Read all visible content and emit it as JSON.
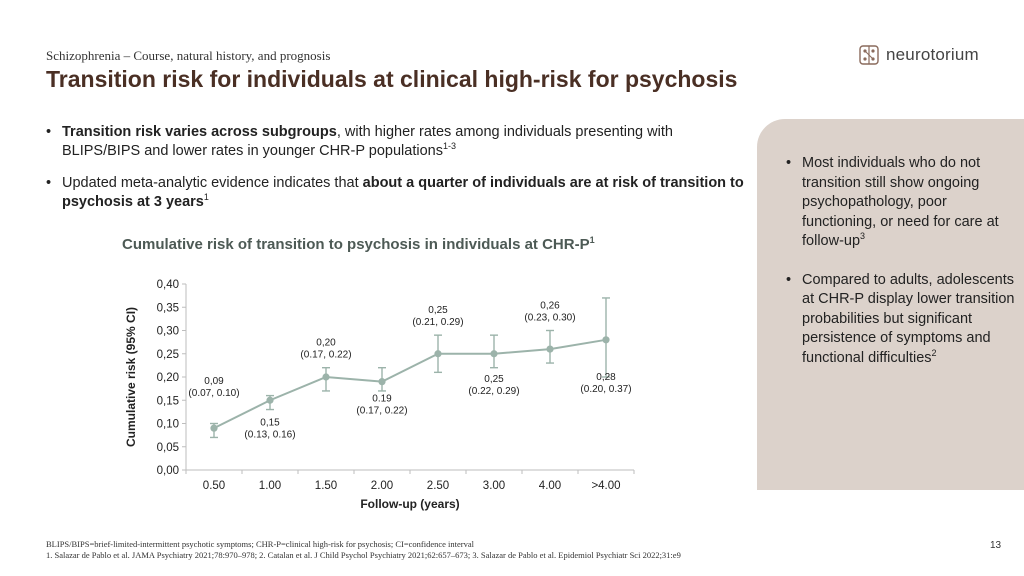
{
  "header": {
    "section": "Schizophrenia – Course, natural history, and prognosis",
    "title": "Transition risk for individuals at clinical high-risk for psychosis",
    "logo_text": "neurotorium"
  },
  "bullets": [
    {
      "bold": "Transition risk varies across subgroups",
      "text": ", with higher rates among individuals presenting with BLIPS/BIPS and lower rates in younger CHR-P populations",
      "sup": "1-3"
    },
    {
      "pre": "Updated meta-analytic evidence indicates that ",
      "bold": "about a quarter of individuals are at risk of transition to psychosis at 3 years",
      "sup": "1"
    }
  ],
  "side_panel": [
    {
      "text": "Most individuals who do not transition still show ongoing psychopathology, poor functioning, or need for care at follow-up",
      "sup": "3"
    },
    {
      "text": "Compared to adults, adolescents at CHR-P display lower transition probabilities but significant persistence of symptoms and functional difficulties",
      "sup": "2"
    }
  ],
  "chart_data": {
    "type": "line",
    "title": "Cumulative risk of transition to psychosis in individuals at CHR-P",
    "title_sup": "1",
    "xlabel": "Follow-up (years)",
    "ylabel": "Cumulative risk (95% CI)",
    "ylim": [
      0,
      0.4
    ],
    "yticks": [
      "0,00",
      "0,05",
      "0,10",
      "0,15",
      "0,20",
      "0,25",
      "0,30",
      "0,35",
      "0,40"
    ],
    "categories": [
      "0.50",
      "1.00",
      "1.50",
      "2.00",
      "2.50",
      "3.00",
      "4.00",
      ">4.00"
    ],
    "values": [
      0.09,
      0.15,
      0.2,
      0.19,
      0.25,
      0.25,
      0.26,
      0.28
    ],
    "ci_low": [
      0.07,
      0.13,
      0.17,
      0.17,
      0.21,
      0.22,
      0.23,
      0.2
    ],
    "ci_high": [
      0.1,
      0.16,
      0.22,
      0.22,
      0.29,
      0.29,
      0.3,
      0.37
    ],
    "labels": [
      {
        "value": "0,09",
        "ci": "(0.07, 0.10)",
        "pos": "above"
      },
      {
        "value": "0,15",
        "ci": "(0.13, 0.16)",
        "pos": "below"
      },
      {
        "value": "0,20",
        "ci": "(0.17, 0.22)",
        "pos": "above"
      },
      {
        "value": "0.19",
        "ci": "(0.17, 0.22)",
        "pos": "below"
      },
      {
        "value": "0,25",
        "ci": "(0.21, 0.29)",
        "pos": "above"
      },
      {
        "value": "0,25",
        "ci": "(0.22, 0.29)",
        "pos": "below"
      },
      {
        "value": "0,26",
        "ci": "(0.23, 0.30)",
        "pos": "above"
      },
      {
        "value": "0,28",
        "ci": "(0.20, 0.37)",
        "pos": "below"
      }
    ],
    "color": "#9cb3aa",
    "grid": false
  },
  "footnotes": [
    "BLIPS/BIPS=brief-limited-intermittent psychotic symptoms; CHR-P=clinical high-risk for psychosis; CI=confidence interval",
    "1. Salazar de Pablo et al. JAMA Psychiatry 2021;78:970–978; 2. Catalan et al. J Child Psychol Psychiatry 2021;62:657–673; 3. Salazar de Pablo et al. Epidemiol Psychiatr Sci 2022;31:e9"
  ],
  "page_number": "13"
}
